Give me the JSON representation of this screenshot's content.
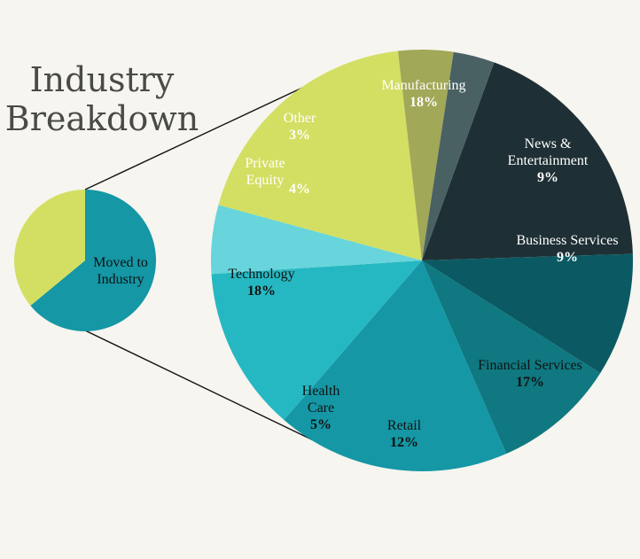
{
  "chart_data": {
    "type": "pie",
    "title": "Industry Breakdown",
    "title_lines": [
      "Industry",
      "Breakdown"
    ],
    "small_pie": {
      "label_lines": [
        "Moved to",
        "Industry"
      ],
      "slices": [
        {
          "name": "Moved to Industry",
          "value": 64,
          "color": "#1597a5"
        },
        {
          "name": "Other",
          "value": 36,
          "color": "#d3df63"
        }
      ]
    },
    "slices": [
      {
        "name": "Manufacturing",
        "label_lines": [
          "Manufacturing"
        ],
        "value": 18,
        "pct_label": "18%",
        "color": "#1e3035",
        "text_color": "#ffffff"
      },
      {
        "name": "News & Entertainment",
        "label_lines": [
          "News &",
          "Entertainment"
        ],
        "value": 9,
        "pct_label": "9%",
        "color": "#0b5a63",
        "text_color": "#ffffff"
      },
      {
        "name": "Business Services",
        "label_lines": [
          "Business Services"
        ],
        "value": 9,
        "pct_label": "9%",
        "color": "#0f7880",
        "text_color": "#ffffff"
      },
      {
        "name": "Financial Services",
        "label_lines": [
          "Financial Services"
        ],
        "value": 17,
        "pct_label": "17%",
        "color": "#1597a5",
        "text_color": "#111111"
      },
      {
        "name": "Retail",
        "label_lines": [
          "Retail"
        ],
        "value": 12,
        "pct_label": "12%",
        "color": "#26b8c2",
        "text_color": "#111111"
      },
      {
        "name": "Health Care",
        "label_lines": [
          "Health",
          "Care"
        ],
        "value": 5,
        "pct_label": "5%",
        "color": "#67d5db",
        "text_color": "#111111"
      },
      {
        "name": "Technology",
        "label_lines": [
          "Technology"
        ],
        "value": 18,
        "pct_label": "18%",
        "color": "#d3df63",
        "text_color": "#111111"
      },
      {
        "name": "Private Equity",
        "label_lines": [
          "Private",
          "Equity"
        ],
        "value": 4,
        "pct_label": "4%",
        "color": "#a1a857",
        "text_color": "#ffffff"
      },
      {
        "name": "Other",
        "label_lines": [
          "Other"
        ],
        "value": 3,
        "pct_label": "3%",
        "color": "#4a6163",
        "text_color": "#ffffff"
      }
    ]
  }
}
